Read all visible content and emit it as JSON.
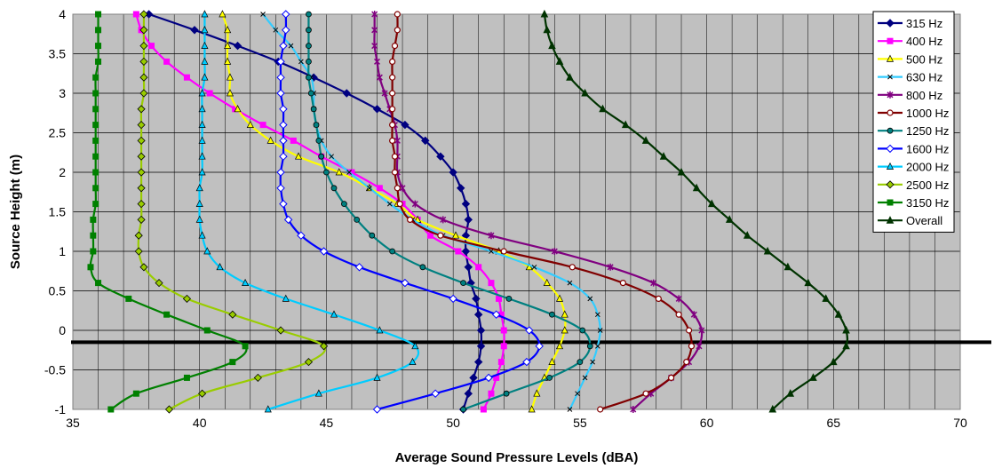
{
  "chart_data": {
    "type": "line",
    "title": "",
    "xlabel": "Average Sound Pressure Levels (dBA)",
    "ylabel": "Source Height (m)",
    "xlim": [
      35,
      70
    ],
    "ylim": [
      -1,
      4
    ],
    "xticks": [
      35,
      40,
      45,
      50,
      55,
      60,
      65,
      70
    ],
    "yticks": [
      -1,
      -0.5,
      0,
      0.5,
      1,
      1.5,
      2,
      2.5,
      3,
      3.5,
      4
    ],
    "minor_x_grid_step": 1,
    "grid": true,
    "legend_position": "top-right",
    "reference_line_y": -0.15,
    "y": [
      4,
      3.8,
      3.6,
      3.4,
      3.2,
      3,
      2.8,
      2.6,
      2.4,
      2.2,
      2,
      1.8,
      1.6,
      1.4,
      1.2,
      1,
      0.8,
      0.6,
      0.4,
      0.2,
      0,
      -0.2,
      -0.4,
      -0.6,
      -0.8,
      -1
    ],
    "series": [
      {
        "name": "315 Hz",
        "color": "#000080",
        "marker": "diamond",
        "x": [
          38.0,
          39.8,
          41.5,
          43.1,
          44.5,
          45.8,
          47.0,
          48.1,
          48.9,
          49.5,
          50.0,
          50.3,
          50.5,
          50.6,
          50.5,
          50.5,
          50.6,
          50.7,
          50.9,
          51.0,
          51.1,
          51.1,
          51.0,
          50.8,
          50.6,
          50.4
        ]
      },
      {
        "name": "400 Hz",
        "color": "#FF00FF",
        "marker": "square",
        "x": [
          37.5,
          37.7,
          38.1,
          38.7,
          39.5,
          40.4,
          41.4,
          42.5,
          43.7,
          44.8,
          46.0,
          47.1,
          48.0,
          48.6,
          49.1,
          50.2,
          51.0,
          51.5,
          51.8,
          51.9,
          52.0,
          52.0,
          51.9,
          51.7,
          51.5,
          51.2
        ]
      },
      {
        "name": "500 Hz",
        "color": "#FFFF00",
        "marker": "triangle-open",
        "x": [
          40.9,
          41.1,
          41.1,
          41.1,
          41.2,
          41.2,
          41.5,
          42.0,
          42.8,
          43.9,
          45.5,
          46.7,
          47.8,
          48.6,
          50.1,
          51.8,
          53.0,
          53.7,
          54.2,
          54.4,
          54.4,
          54.2,
          53.9,
          53.6,
          53.3,
          53.1
        ]
      },
      {
        "name": "630 Hz",
        "color": "#33CCFF",
        "marker": "x",
        "x": [
          42.5,
          43.0,
          43.6,
          44.0,
          44.4,
          44.5,
          44.5,
          44.6,
          44.8,
          45.2,
          45.9,
          46.7,
          47.5,
          48.4,
          49.6,
          51.5,
          53.2,
          54.6,
          55.4,
          55.7,
          55.8,
          55.7,
          55.5,
          55.2,
          54.9,
          54.6
        ]
      },
      {
        "name": "800 Hz",
        "color": "#800080",
        "marker": "asterisk",
        "x": [
          46.9,
          46.9,
          46.9,
          47.0,
          47.1,
          47.3,
          47.5,
          47.7,
          47.8,
          47.8,
          47.8,
          48.0,
          48.5,
          49.6,
          51.5,
          54.0,
          56.2,
          57.9,
          58.9,
          59.5,
          59.8,
          59.7,
          59.3,
          58.6,
          57.8,
          57.1
        ]
      },
      {
        "name": "1000 Hz",
        "color": "#800000",
        "marker": "circle-open",
        "x": [
          47.8,
          47.8,
          47.7,
          47.6,
          47.6,
          47.6,
          47.6,
          47.6,
          47.6,
          47.7,
          47.7,
          47.8,
          47.9,
          48.3,
          49.5,
          52.0,
          54.7,
          56.7,
          58.1,
          58.9,
          59.3,
          59.4,
          59.2,
          58.6,
          57.6,
          55.8
        ]
      },
      {
        "name": "1250 Hz",
        "color": "#008080",
        "marker": "circle-filled",
        "x": [
          44.3,
          44.3,
          44.3,
          44.3,
          44.3,
          44.4,
          44.5,
          44.6,
          44.7,
          44.8,
          45.0,
          45.3,
          45.7,
          46.2,
          46.8,
          47.6,
          48.8,
          50.4,
          52.2,
          53.9,
          55.1,
          55.4,
          55.0,
          53.8,
          52.1,
          50.4
        ]
      },
      {
        "name": "1600 Hz",
        "color": "#0000FF",
        "marker": "diamond-open",
        "x": [
          43.4,
          43.4,
          43.3,
          43.2,
          43.2,
          43.2,
          43.3,
          43.3,
          43.3,
          43.3,
          43.2,
          43.2,
          43.3,
          43.5,
          44.0,
          44.9,
          46.3,
          48.1,
          50.0,
          51.7,
          53.0,
          53.4,
          52.9,
          51.4,
          49.3,
          47.0
        ]
      },
      {
        "name": "2000 Hz",
        "color": "#00CCFF",
        "marker": "triangle-open",
        "x": [
          40.2,
          40.2,
          40.2,
          40.2,
          40.2,
          40.1,
          40.1,
          40.1,
          40.1,
          40.1,
          40.1,
          40.0,
          40.0,
          40.0,
          40.1,
          40.3,
          40.8,
          41.8,
          43.4,
          45.3,
          47.1,
          48.5,
          48.4,
          47.0,
          44.7,
          42.7
        ]
      },
      {
        "name": "2500 Hz",
        "color": "#99CC00",
        "marker": "diamond-filled",
        "x": [
          37.8,
          37.8,
          37.8,
          37.8,
          37.8,
          37.8,
          37.7,
          37.7,
          37.7,
          37.7,
          37.7,
          37.7,
          37.7,
          37.7,
          37.6,
          37.6,
          37.8,
          38.4,
          39.5,
          41.3,
          43.2,
          44.9,
          44.3,
          42.3,
          40.1,
          38.8
        ]
      },
      {
        "name": "3150 Hz",
        "color": "#008000",
        "marker": "square",
        "x": [
          36.0,
          36.0,
          36.0,
          36.0,
          35.9,
          35.9,
          35.9,
          35.9,
          35.9,
          35.9,
          35.9,
          35.9,
          35.9,
          35.8,
          35.8,
          35.8,
          35.7,
          36.0,
          37.2,
          38.7,
          40.3,
          41.8,
          41.3,
          39.5,
          37.5,
          36.5
        ]
      },
      {
        "name": "Overall",
        "color": "#003300",
        "marker": "triangle",
        "x": [
          53.6,
          53.7,
          53.9,
          54.2,
          54.6,
          55.2,
          55.9,
          56.8,
          57.6,
          58.3,
          59.0,
          59.6,
          60.2,
          60.9,
          61.6,
          62.4,
          63.2,
          64.0,
          64.7,
          65.2,
          65.5,
          65.5,
          65.0,
          64.2,
          63.3,
          62.6
        ]
      }
    ]
  }
}
